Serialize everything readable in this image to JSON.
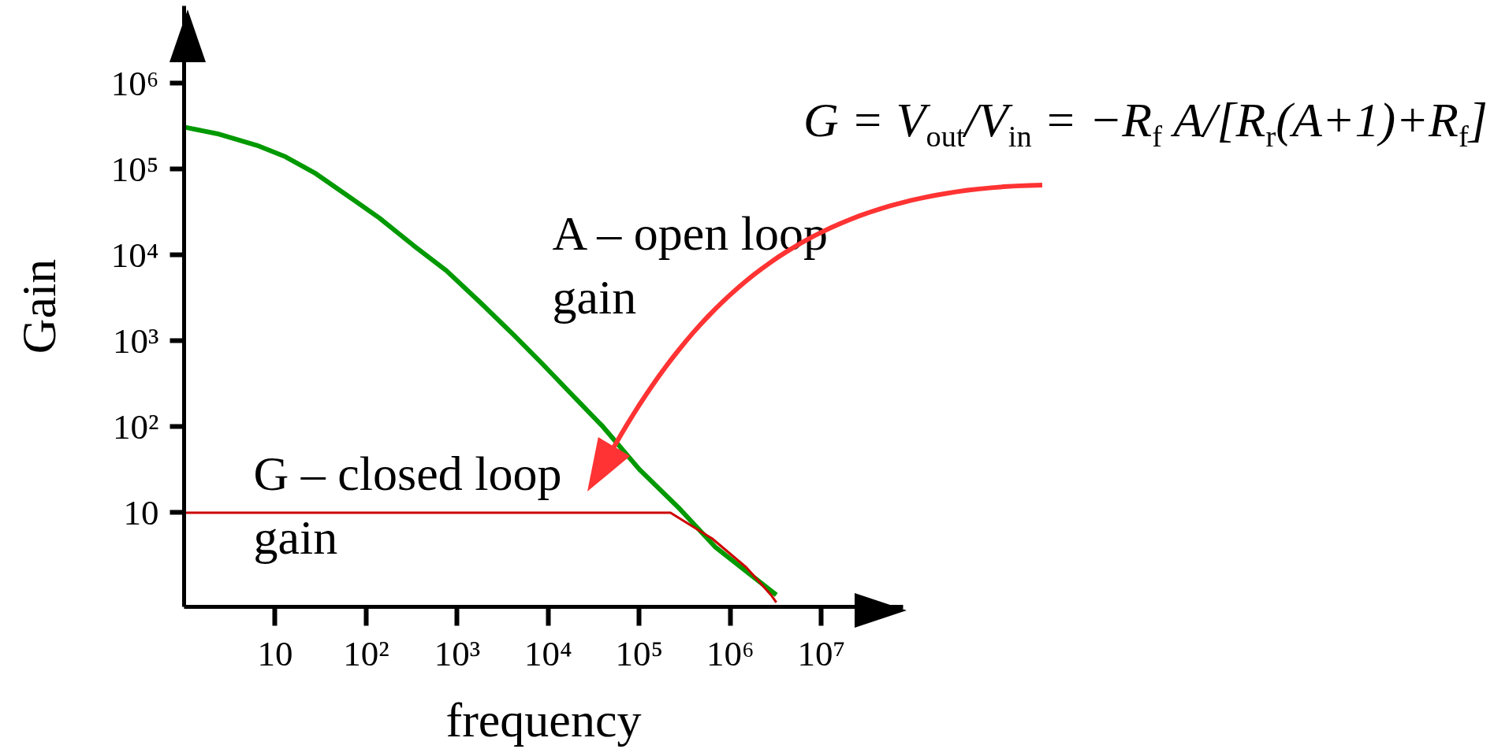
{
  "chart_data": {
    "type": "line",
    "xlabel": "frequency",
    "ylabel": "Gain",
    "log": "xy",
    "xlim": [
      1,
      79000000
    ],
    "ylim": [
      0.8,
      8000000
    ],
    "xticks": [
      10,
      {
        "value": 100,
        "label": "10²"
      },
      {
        "value": 1000,
        "label": "10³"
      },
      {
        "value": 10000,
        "label": "10⁴"
      },
      {
        "value": 100000,
        "label": "10⁵"
      },
      {
        "value": 1000000,
        "label": "10⁶"
      },
      {
        "value": 10000000,
        "label": "10⁷"
      }
    ],
    "yticks": [
      10,
      {
        "value": 100,
        "label": "10²"
      },
      {
        "value": 1000,
        "label": "10³"
      },
      {
        "value": 10000,
        "label": "10⁴"
      },
      {
        "value": 100000,
        "label": "10⁵"
      },
      {
        "value": 1000000,
        "label": "10⁶"
      }
    ],
    "grid": false,
    "legend": false,
    "series": [
      {
        "name": "A – open loop gain",
        "color": "#009900",
        "x": [
          1,
          2.3,
          6.3,
          13,
          28,
          63,
          140,
          330,
          760,
          1800,
          4100,
          8500,
          18000,
          40000,
          100000,
          280000,
          680000,
          3200000
        ],
        "values": [
          310000,
          260000,
          190000,
          140000,
          89000,
          49000,
          27000,
          13000,
          6600,
          2800,
          1200,
          550,
          240,
          100,
          32,
          11,
          4,
          1.1
        ]
      },
      {
        "name": "G – closed loop gain",
        "color": "#cc0000",
        "x": [
          1,
          220000,
          630000,
          1500000,
          2800000,
          3200000
        ],
        "values": [
          10,
          10,
          5,
          2.3,
          1.1,
          0.9
        ]
      }
    ],
    "annotations": [
      "G = V$_{out}$/V$_{in}$ = −R$_{f}$ A/[R$_{r}$(A+1)+R$_{f}$]"
    ]
  }
}
